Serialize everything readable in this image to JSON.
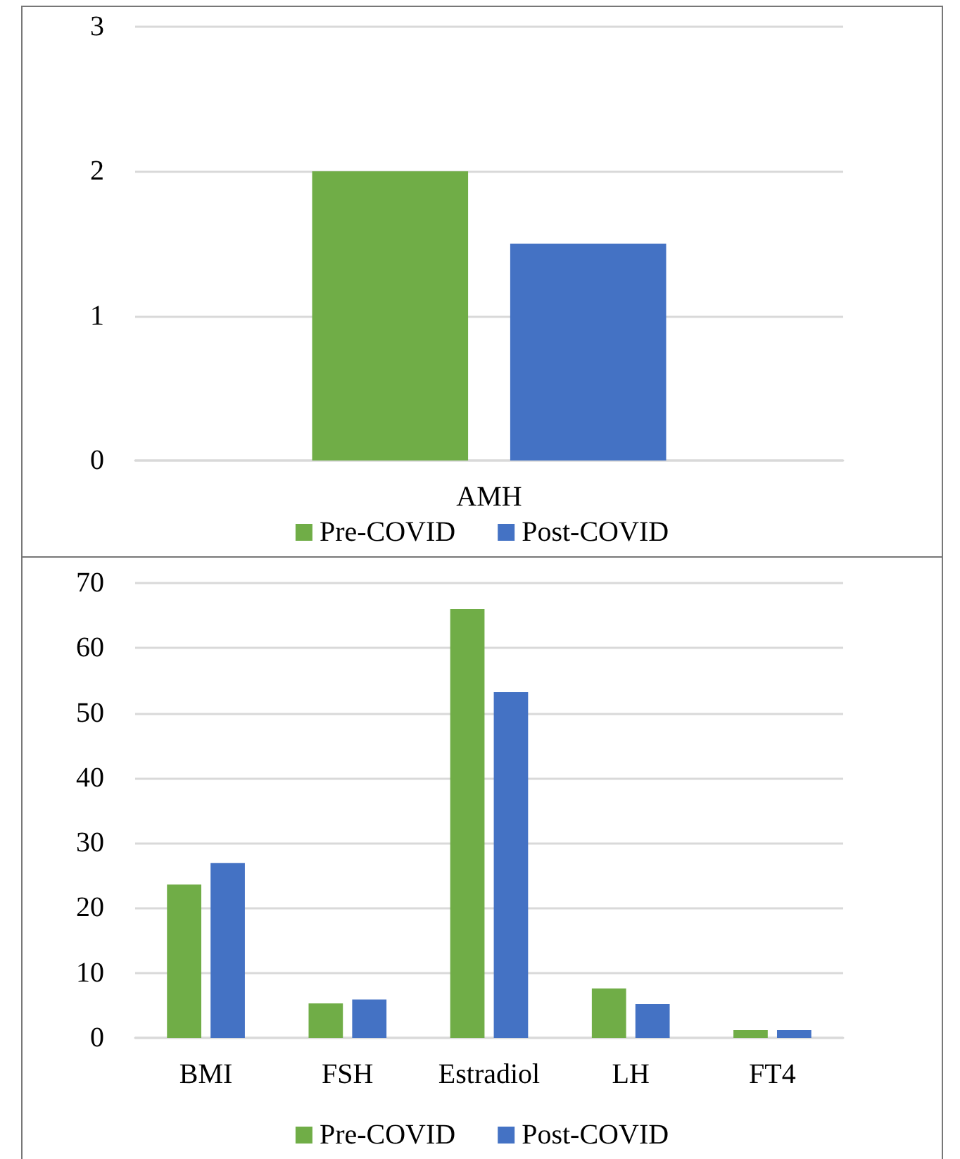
{
  "chart_data": [
    {
      "type": "bar",
      "categories": [
        "AMH"
      ],
      "series": [
        {
          "name": "Pre-COVID",
          "color": "#70ad47",
          "values": [
            2.0
          ]
        },
        {
          "name": "Post-COVID",
          "color": "#4472c4",
          "values": [
            1.5
          ]
        }
      ],
      "ylim": [
        0,
        3
      ],
      "yticks": [
        0,
        1,
        2,
        3
      ],
      "grid": "y",
      "legend": "bottom"
    },
    {
      "type": "bar",
      "categories": [
        "BMI",
        "FSH",
        "Estradiol",
        "LH",
        "FT4"
      ],
      "series": [
        {
          "name": "Pre-COVID",
          "color": "#70ad47",
          "values": [
            23.6,
            5.3,
            66.0,
            7.6,
            1.2
          ]
        },
        {
          "name": "Post-COVID",
          "color": "#4472c4",
          "values": [
            26.9,
            5.9,
            53.2,
            5.2,
            1.2
          ]
        }
      ],
      "ylim": [
        0,
        70
      ],
      "yticks": [
        0,
        10,
        20,
        30,
        40,
        50,
        60,
        70
      ],
      "grid": "y",
      "legend": "bottom"
    }
  ]
}
